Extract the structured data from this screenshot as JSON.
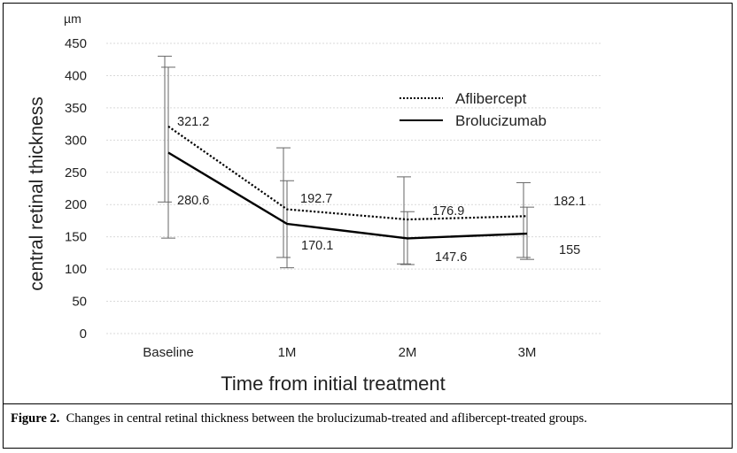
{
  "chart_data": {
    "type": "line",
    "categories": [
      "Baseline",
      "1M",
      "2M",
      "3M"
    ],
    "series": [
      {
        "name": "Aflibercept",
        "style": "dotted",
        "values": [
          321.2,
          192.7,
          176.9,
          182.1
        ],
        "error_upper": [
          430,
          288,
          243,
          234
        ],
        "error_lower": [
          204,
          118,
          108,
          118
        ]
      },
      {
        "name": "Brolucizumab",
        "style": "solid",
        "values": [
          280.6,
          170.1,
          147.6,
          155
        ],
        "error_upper": [
          413,
          237,
          189,
          196
        ],
        "error_lower": [
          148,
          102,
          107,
          115
        ]
      }
    ],
    "data_labels": [
      "321.2",
      "192.7",
      "176.9",
      "182.1",
      "280.6",
      "170.1",
      "147.6",
      "155"
    ],
    "unit": "µm",
    "ylabel": "central retinal thickness",
    "xlabel": "Time from initial treatment",
    "ylim": [
      0,
      450
    ],
    "yticks": [
      0,
      50,
      100,
      150,
      200,
      250,
      300,
      350,
      400,
      450
    ],
    "grid": true,
    "legend_position": "top-right",
    "line_color": "#000000",
    "grid_color": "#d9d9d9"
  },
  "caption": {
    "label": "Figure 2.",
    "text": "Changes in central retinal thickness between the brolucizumab-treated and aflibercept-treated groups."
  }
}
